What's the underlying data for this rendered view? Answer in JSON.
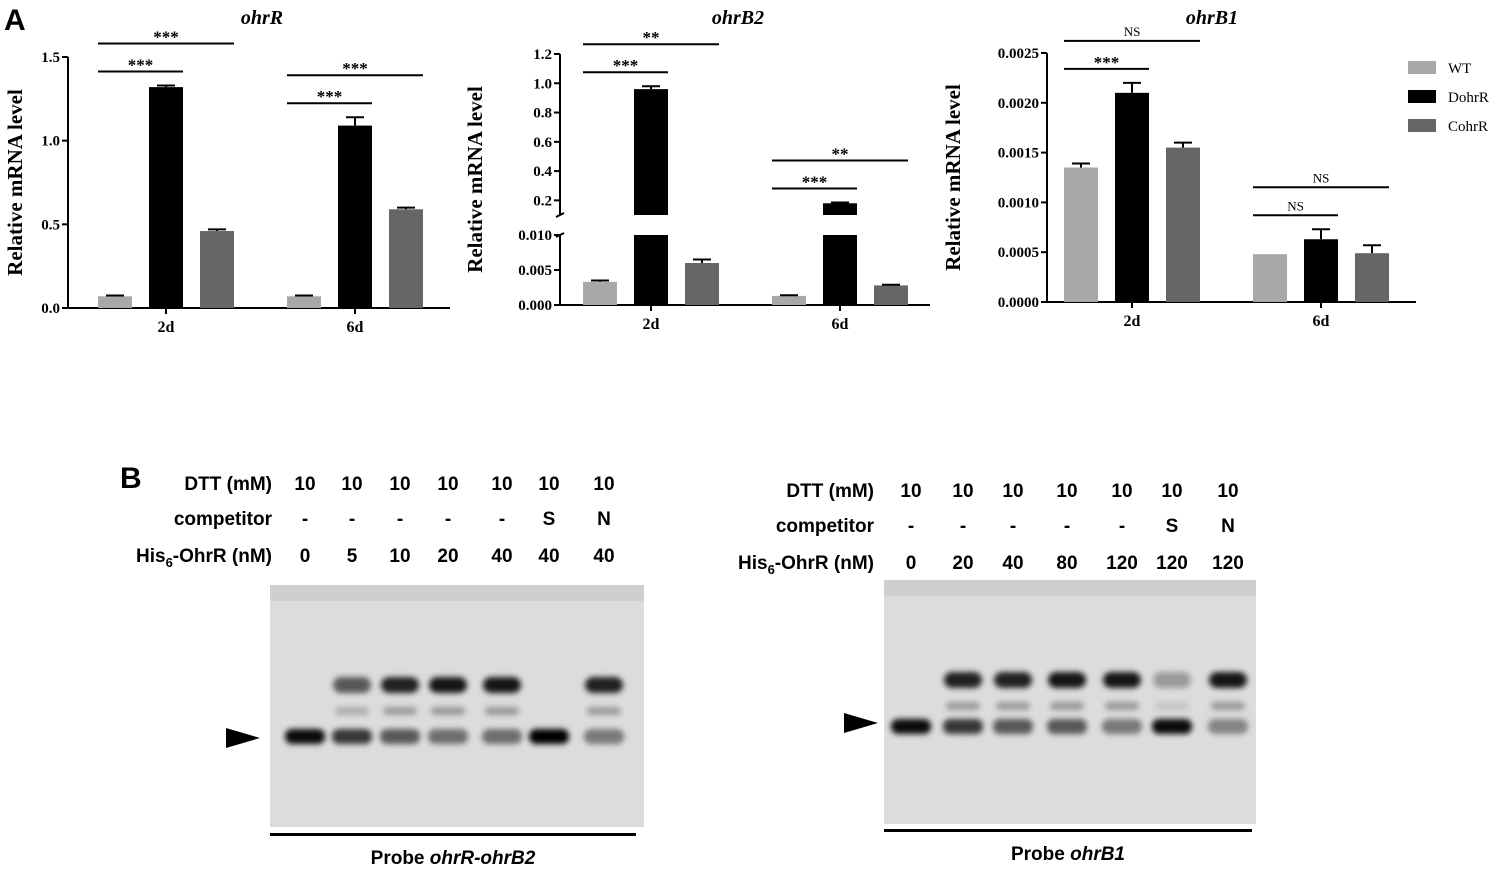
{
  "panel_a_label": "A",
  "panel_b_label": "B",
  "colors": {
    "wt": "#a8a8a9",
    "dohrr": "#000000",
    "cohrr": "#666666"
  },
  "legend": {
    "wt": "WT",
    "dohrr": "DohrR",
    "cohrr": "CohrR"
  },
  "chart_data": [
    {
      "type": "bar",
      "title": "ohrR",
      "ylabel": "Relative mRNA level",
      "categories": [
        "2d",
        "6d"
      ],
      "ylim": [
        0,
        1.5
      ],
      "yticks": [
        "0.0",
        "0.5",
        "1.0",
        "1.5"
      ],
      "series": [
        {
          "name": "WT",
          "values": [
            0.07,
            0.07
          ],
          "errors": [
            0.005,
            0.005
          ]
        },
        {
          "name": "DohrR",
          "values": [
            1.32,
            1.09
          ],
          "errors": [
            0.01,
            0.05
          ]
        },
        {
          "name": "CohrR",
          "values": [
            0.46,
            0.59
          ],
          "errors": [
            0.01,
            0.01
          ]
        }
      ],
      "significance": [
        {
          "category": "2d",
          "compare": "WT-DohrR",
          "label": "***"
        },
        {
          "category": "2d",
          "compare": "WT-CohrR",
          "label": "***"
        },
        {
          "category": "6d",
          "compare": "WT-DohrR",
          "label": "***"
        },
        {
          "category": "6d",
          "compare": "WT-CohrR",
          "label": "***"
        }
      ]
    },
    {
      "type": "bar",
      "title": "ohrB2",
      "ylabel": "Relative mRNA level",
      "categories": [
        "2d",
        "6d"
      ],
      "broken_axis": true,
      "lower_ylim": [
        0,
        0.01
      ],
      "upper_ylim": [
        0.1,
        1.2
      ],
      "lower_yticks": [
        "0.000",
        "0.005",
        "0.010"
      ],
      "upper_yticks": [
        "0.2",
        "0.4",
        "0.6",
        "0.8",
        "1.0",
        "1.2"
      ],
      "series": [
        {
          "name": "WT",
          "values": [
            0.0033,
            0.0013
          ],
          "errors": [
            0.0002,
            0.0001
          ]
        },
        {
          "name": "DohrR",
          "values": [
            0.96,
            0.18
          ],
          "errors": [
            0.02,
            0.005
          ]
        },
        {
          "name": "CohrR",
          "values": [
            0.006,
            0.0028
          ],
          "errors": [
            0.0005,
            0.0001
          ]
        }
      ],
      "significance": [
        {
          "category": "2d",
          "compare": "WT-DohrR",
          "label": "***"
        },
        {
          "category": "2d",
          "compare": "WT-CohrR",
          "label": "**"
        },
        {
          "category": "6d",
          "compare": "WT-DohrR",
          "label": "***"
        },
        {
          "category": "6d",
          "compare": "WT-CohrR",
          "label": "**"
        }
      ]
    },
    {
      "type": "bar",
      "title": "ohrB1",
      "ylabel": "Relative mRNA level",
      "categories": [
        "2d",
        "6d"
      ],
      "ylim": [
        0,
        0.0025
      ],
      "yticks": [
        "0.0000",
        "0.0005",
        "0.0010",
        "0.0015",
        "0.0020",
        "0.0025"
      ],
      "series": [
        {
          "name": "WT",
          "values": [
            0.00135,
            0.00048
          ],
          "errors": [
            4e-05,
            0.0
          ]
        },
        {
          "name": "DohrR",
          "values": [
            0.0021,
            0.00063
          ],
          "errors": [
            0.0001,
            0.0001
          ]
        },
        {
          "name": "CohrR",
          "values": [
            0.00155,
            0.00049
          ],
          "errors": [
            5e-05,
            8e-05
          ]
        }
      ],
      "significance": [
        {
          "category": "2d",
          "compare": "WT-DohrR",
          "label": "***"
        },
        {
          "category": "2d",
          "compare": "WT-CohrR",
          "label": "NS"
        },
        {
          "category": "6d",
          "compare": "WT-DohrR",
          "label": "NS"
        },
        {
          "category": "6d",
          "compare": "WT-CohrR",
          "label": "NS"
        }
      ]
    }
  ],
  "gels": [
    {
      "row_labels": {
        "dtt": "DTT (mM)",
        "competitor": "competitor",
        "his_prefix": "His",
        "his_sub": "6",
        "his_suffix": "-OhrR (nM)"
      },
      "dtt": [
        "10",
        "10",
        "10",
        "10",
        "10",
        "10",
        "10"
      ],
      "competitor": [
        "-",
        "-",
        "-",
        "-",
        "-",
        "S",
        "N"
      ],
      "his6_ohrr": [
        "0",
        "5",
        "10",
        "20",
        "40",
        "40",
        "40"
      ],
      "probe_prefix": "Probe ",
      "probe_name": "ohrR-ohrB2",
      "shifted_band_intensity": [
        0.0,
        0.6,
        0.85,
        0.9,
        0.9,
        0.0,
        0.85
      ],
      "free_band_intensity": [
        0.95,
        0.75,
        0.6,
        0.5,
        0.5,
        1.0,
        0.45
      ]
    },
    {
      "row_labels": {
        "dtt": "DTT (mM)",
        "competitor": "competitor",
        "his_prefix": "His",
        "his_sub": "6",
        "his_suffix": "-OhrR (nM)"
      },
      "dtt": [
        "10",
        "10",
        "10",
        "10",
        "10",
        "10",
        "10"
      ],
      "competitor": [
        "-",
        "-",
        "-",
        "-",
        "-",
        "S",
        "N"
      ],
      "his6_ohrr": [
        "0",
        "20",
        "40",
        "80",
        "120",
        "120",
        "120"
      ],
      "probe_prefix": "Probe ",
      "probe_name": "ohrB1",
      "shifted_band_intensity": [
        0.0,
        0.85,
        0.85,
        0.9,
        0.9,
        0.3,
        0.9
      ],
      "free_band_intensity": [
        0.95,
        0.75,
        0.6,
        0.6,
        0.45,
        0.95,
        0.4
      ]
    }
  ]
}
